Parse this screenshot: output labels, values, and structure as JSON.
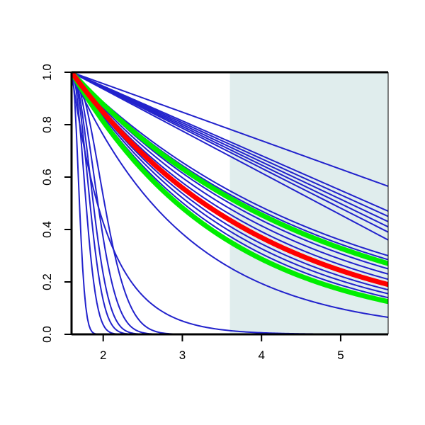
{
  "chart_data": {
    "type": "line",
    "title": "",
    "xlabel": "",
    "ylabel": "",
    "xlim": [
      1.6,
      5.6
    ],
    "ylim": [
      0,
      1
    ],
    "x_ticks": [
      "2",
      "3",
      "4",
      "5"
    ],
    "y_ticks": [
      "0.0",
      "0.2",
      "0.4",
      "0.6",
      "0.8",
      "1.0"
    ],
    "shaded_region": {
      "x_start": 3.6,
      "x_end": 5.6,
      "color": "#e0eded"
    },
    "colors": {
      "primary": "#2222cc",
      "highlight": "#ff0000",
      "accent": "#00ee00"
    },
    "x_start": 1.6,
    "curves": [
      {
        "color": "#2222cc",
        "type": "linear",
        "y_at_xmax": 0.565
      },
      {
        "color": "#2222cc",
        "type": "linear",
        "y_at_xmax": 0.47
      },
      {
        "color": "#2222cc",
        "type": "linear",
        "y_at_xmax": 0.45
      },
      {
        "color": "#2222cc",
        "type": "linear",
        "y_at_xmax": 0.43
      },
      {
        "color": "#2222cc",
        "type": "linear",
        "y_at_xmax": 0.41
      },
      {
        "color": "#2222cc",
        "type": "linear",
        "y_at_xmax": 0.39
      },
      {
        "color": "#2222cc",
        "type": "linear",
        "y_at_xmax": 0.36
      },
      {
        "color": "#2222cc",
        "type": "exp",
        "y_at_xmax": 0.3
      },
      {
        "color": "#2222cc",
        "type": "exp",
        "y_at_xmax": 0.285
      },
      {
        "color": "#2222cc",
        "type": "exp",
        "y_at_xmax": 0.27
      },
      {
        "color": "#2222cc",
        "type": "exp",
        "y_at_xmax": 0.25
      },
      {
        "color": "#2222cc",
        "type": "exp",
        "y_at_xmax": 0.23
      },
      {
        "color": "#2222cc",
        "type": "exp",
        "y_at_xmax": 0.21
      },
      {
        "color": "#2222cc",
        "type": "exp",
        "y_at_xmax": 0.17
      },
      {
        "color": "#2222cc",
        "type": "exp",
        "y_at_xmax": 0.155
      },
      {
        "color": "#2222cc",
        "type": "exp",
        "y_at_xmax": 0.14
      },
      {
        "color": "#2222cc",
        "type": "exp",
        "y_at_xmax": 0.13
      },
      {
        "color": "#2222cc",
        "type": "exp",
        "y_at_xmax": 0.065
      },
      {
        "color": "#2222cc",
        "type": "exp",
        "y_at_xmax": 0.0002
      },
      {
        "color": "#2222cc",
        "type": "gauss",
        "sigma": 0.12
      },
      {
        "color": "#2222cc",
        "type": "gauss",
        "sigma": 0.22
      },
      {
        "color": "#2222cc",
        "type": "gauss",
        "sigma": 0.28
      },
      {
        "color": "#2222cc",
        "type": "gauss",
        "sigma": 0.33
      },
      {
        "color": "#2222cc",
        "type": "gauss",
        "sigma": 0.4
      },
      {
        "color": "#2222cc",
        "type": "gauss",
        "sigma": 0.5
      },
      {
        "color": "#00ee00",
        "type": "exp",
        "y_at_xmax": 0.27,
        "emphasis": true
      },
      {
        "color": "#00ee00",
        "type": "exp",
        "y_at_xmax": 0.125,
        "emphasis": true
      },
      {
        "color": "#ff0000",
        "type": "exp",
        "y_at_xmax": 0.19,
        "emphasis": true
      }
    ]
  }
}
